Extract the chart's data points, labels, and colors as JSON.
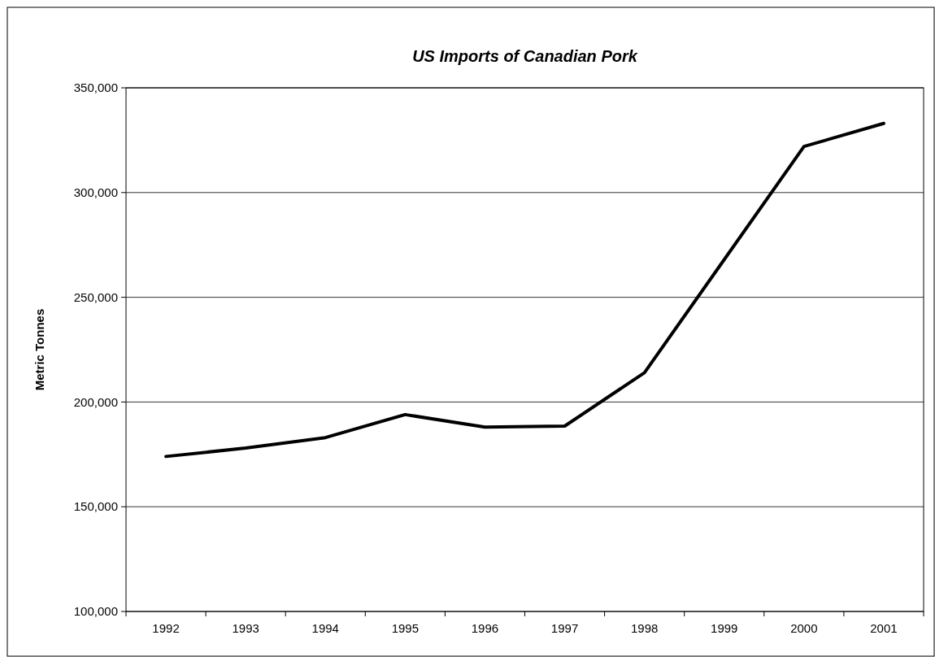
{
  "chart_data": {
    "type": "line",
    "title": "US Imports of Canadian Pork",
    "ylabel": "Metric Tonnes",
    "categories": [
      "1992",
      "1993",
      "1994",
      "1995",
      "1996",
      "1997",
      "1998",
      "1999",
      "2000",
      "2001"
    ],
    "series": [
      {
        "color": "#000000",
        "values": [
          174000,
          178000,
          183000,
          194000,
          188000,
          188500,
          214000,
          268000,
          322000,
          333000
        ]
      }
    ],
    "ylim": [
      100000,
      350000
    ],
    "yticks": [
      {
        "value": 100000,
        "label": "100,000"
      },
      {
        "value": 150000,
        "label": "150,000"
      },
      {
        "value": 200000,
        "label": "200,000"
      },
      {
        "value": 250000,
        "label": "250,000"
      },
      {
        "value": 300000,
        "label": "300,000"
      },
      {
        "value": 350000,
        "label": "350,000"
      }
    ],
    "grid": "y",
    "marker": "none",
    "line_style": "solid"
  }
}
